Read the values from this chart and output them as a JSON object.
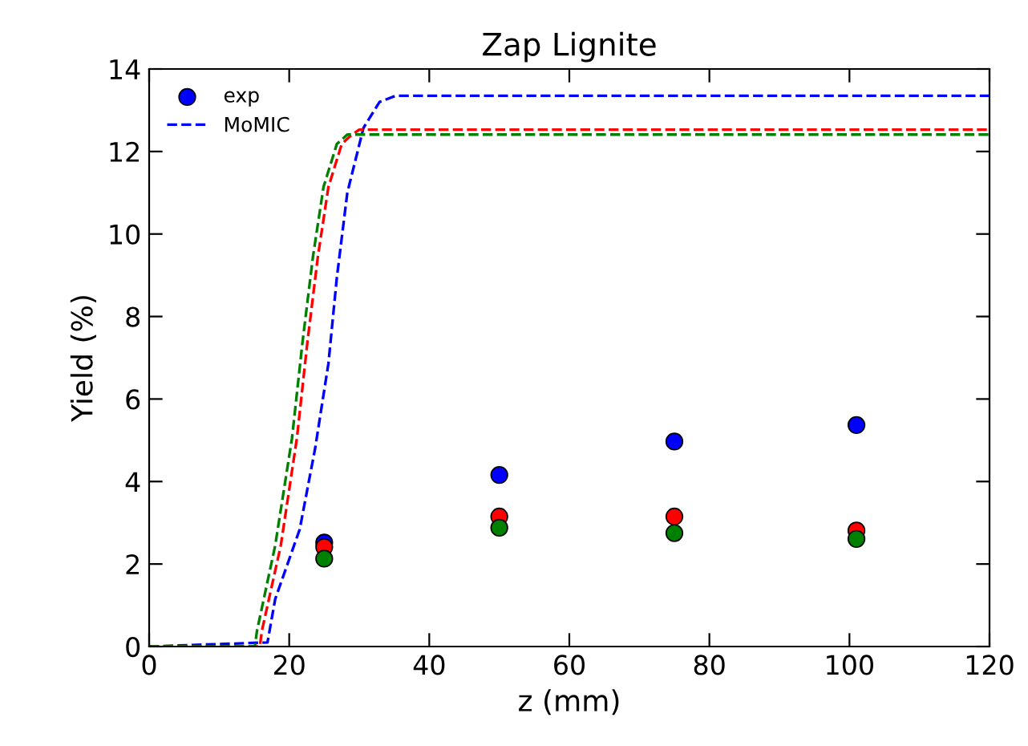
{
  "chart_data": {
    "type": "scatter",
    "title": "Zap Lignite",
    "xlabel": "z (mm)",
    "ylabel": "Yield (%)",
    "xlim": [
      0,
      120
    ],
    "ylim": [
      0,
      14
    ],
    "xticks": [
      0,
      20,
      40,
      60,
      80,
      100,
      120
    ],
    "yticks": [
      0,
      2,
      4,
      6,
      8,
      10,
      12,
      14
    ],
    "grid": false,
    "legend": "top left",
    "marker": "circle",
    "series": [
      {
        "name": "exp",
        "color": "#0000ff",
        "x": [
          25,
          50,
          75,
          101
        ],
        "values": [
          2.52,
          4.16,
          4.97,
          5.37
        ]
      },
      {
        "color": "#ff0000",
        "x": [
          25,
          50,
          75,
          101
        ],
        "values": [
          2.41,
          3.15,
          3.15,
          2.81
        ]
      },
      {
        "color": "#008000",
        "x": [
          25,
          50,
          75,
          101
        ],
        "values": [
          2.13,
          2.88,
          2.75,
          2.61
        ]
      },
      {
        "name": "MoMIC",
        "type": "line",
        "line_style": "dashed",
        "marker": "none",
        "color": "#0000ff",
        "x": [
          0,
          16.9,
          18.0,
          21.5,
          23.7,
          25.6,
          26.8,
          28.3,
          30.6,
          32.9,
          35.2,
          120
        ],
        "values": [
          0,
          0.1,
          1.15,
          2.84,
          4.8,
          6.86,
          8.94,
          11.0,
          12.57,
          13.2,
          13.35,
          13.35
        ]
      },
      {
        "type": "line",
        "line_style": "dashed",
        "marker": "none",
        "color": "#ff0000",
        "x": [
          0,
          15.8,
          16.1,
          18.8,
          21.1,
          22.6,
          24.1,
          25.6,
          27.5,
          28.7,
          30.0,
          120
        ],
        "values": [
          0,
          0,
          0.38,
          2.45,
          5.05,
          7.38,
          9.46,
          11.14,
          12.18,
          12.37,
          12.53,
          12.53
        ]
      },
      {
        "type": "line",
        "line_style": "dashed",
        "marker": "none",
        "color": "#008000",
        "x": [
          0,
          15.1,
          15.4,
          18.0,
          20.4,
          21.9,
          23.4,
          24.9,
          26.8,
          28.3,
          120
        ],
        "values": [
          0,
          0,
          0.38,
          2.45,
          5.05,
          7.38,
          9.46,
          11.14,
          12.18,
          12.41,
          12.41
        ]
      }
    ]
  }
}
